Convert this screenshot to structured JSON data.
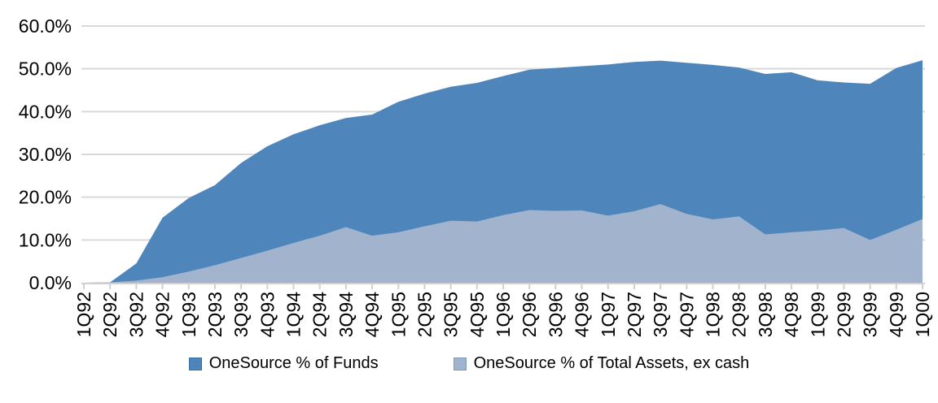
{
  "chart_data": {
    "type": "area",
    "overlay": true,
    "title": "",
    "xlabel": "",
    "ylabel": "",
    "ylim": [
      0,
      60
    ],
    "ytick_step": 10,
    "y_ticks": [
      "0.0%",
      "10.0%",
      "20.0%",
      "30.0%",
      "40.0%",
      "50.0%",
      "60.0%"
    ],
    "grid": true,
    "legend_position": "bottom",
    "categories": [
      "1Q92",
      "2Q92",
      "3Q92",
      "4Q92",
      "1Q93",
      "2Q93",
      "3Q93",
      "4Q93",
      "1Q94",
      "2Q94",
      "3Q94",
      "4Q94",
      "1Q95",
      "2Q95",
      "3Q95",
      "4Q95",
      "1Q96",
      "2Q96",
      "3Q96",
      "4Q96",
      "1Q97",
      "2Q97",
      "3Q97",
      "4Q97",
      "1Q98",
      "2Q98",
      "3Q98",
      "4Q98",
      "1Q99",
      "2Q99",
      "3Q99",
      "4Q99",
      "1Q00"
    ],
    "series": [
      {
        "name": "OneSource % of Funds",
        "color": "#4E86BC",
        "swatch_border": "#3D6E9E",
        "values": [
          0.0,
          0.1,
          4.5,
          15.2,
          19.8,
          22.8,
          28.0,
          31.9,
          34.7,
          36.8,
          38.5,
          39.3,
          42.3,
          44.2,
          45.8,
          46.7,
          48.3,
          49.8,
          50.2,
          50.6,
          51.0,
          51.6,
          51.9,
          51.4,
          50.9,
          50.3,
          48.8,
          49.2,
          47.3,
          46.8,
          46.5,
          50.2,
          52.0
        ]
      },
      {
        "name": "OneSource % of Total Assets, ex cash",
        "color": "#A1B3CD",
        "swatch_border": "#7E99BC",
        "values": [
          0.0,
          0.1,
          0.5,
          1.3,
          2.6,
          4.1,
          5.8,
          7.5,
          9.3,
          11.0,
          13.0,
          11.0,
          11.8,
          13.2,
          14.5,
          14.3,
          15.8,
          17.0,
          16.8,
          16.9,
          15.7,
          16.7,
          18.4,
          16.1,
          14.8,
          15.5,
          11.3,
          11.8,
          12.2,
          12.8,
          10.0,
          12.4,
          14.9
        ]
      }
    ],
    "colors": {
      "gridline": "#D9D9D9",
      "axis": "#D0D0D0",
      "text": "#000000"
    }
  }
}
